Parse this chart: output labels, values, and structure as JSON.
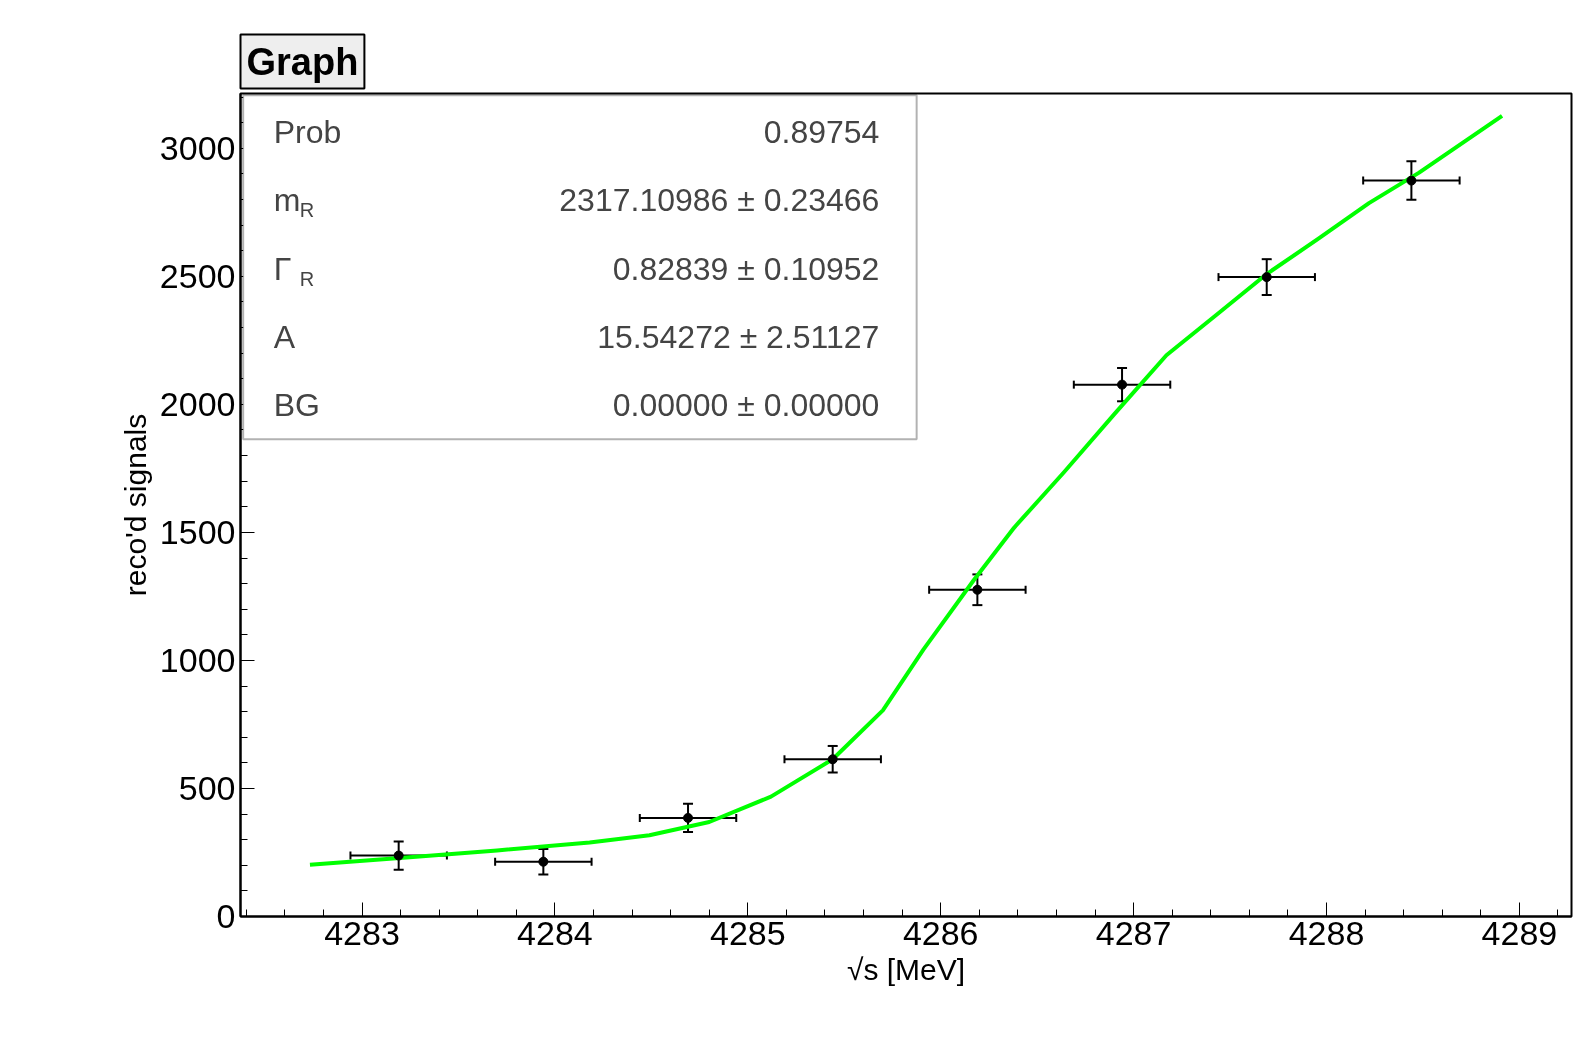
{
  "chart_data": {
    "type": "scatter",
    "title": "Graph",
    "xlabel": "√s [MeV]",
    "ylabel": "reco'd signals",
    "xlim": [
      4282.37,
      4289.27
    ],
    "ylim": [
      0,
      3214
    ],
    "xticks": [
      4283,
      4284,
      4285,
      4286,
      4287,
      4288,
      4289
    ],
    "yticks": [
      0,
      500,
      1000,
      1500,
      2000,
      2500,
      3000
    ],
    "grid": false,
    "annotations": [
      "Prob",
      "0.89754",
      "m$_{R}$",
      "2317.10986 ± 0.23466",
      "Γ$_{R}$",
      "0.82839 ± 0.10952",
      "A",
      "15.54272 ± 2.51127",
      "BG",
      "0.00000 ± 0.00000"
    ],
    "series": [
      {
        "marker": "circle",
        "color": "#000000",
        "x": [
          4283.19,
          4283.94,
          4284.69,
          4285.44,
          4286.19,
          4286.94,
          4287.69,
          4288.44
        ],
        "values": [
          238,
          214,
          385,
          614,
          1276,
          2077,
          2497,
          2874
        ],
        "errors": [
          55,
          50,
          55,
          52,
          60,
          65,
          70,
          75
        ],
        "xerrors": [
          0.25,
          0.25,
          0.25,
          0.25,
          0.25,
          0.25,
          0.25,
          0.25
        ]
      },
      {
        "type": "line",
        "color": "#00ff00",
        "line_style": "solid",
        "x": [
          4282.73,
          4283.23,
          4283.7,
          4284.18,
          4284.49,
          4284.8,
          4285.12,
          4285.44,
          4285.7,
          4285.91,
          4286.17,
          4286.38,
          4286.64,
          4286.9,
          4287.17,
          4287.43,
          4287.69,
          4287.96,
          4288.22,
          4288.48,
          4288.91
        ],
        "values": [
          202,
          230,
          258,
          289,
          317,
          369,
          468,
          614,
          805,
          1042,
          1312,
          1518,
          1736,
          1962,
          2192,
          2350,
          2509,
          2648,
          2786,
          2905,
          3127
        ]
      }
    ]
  }
}
